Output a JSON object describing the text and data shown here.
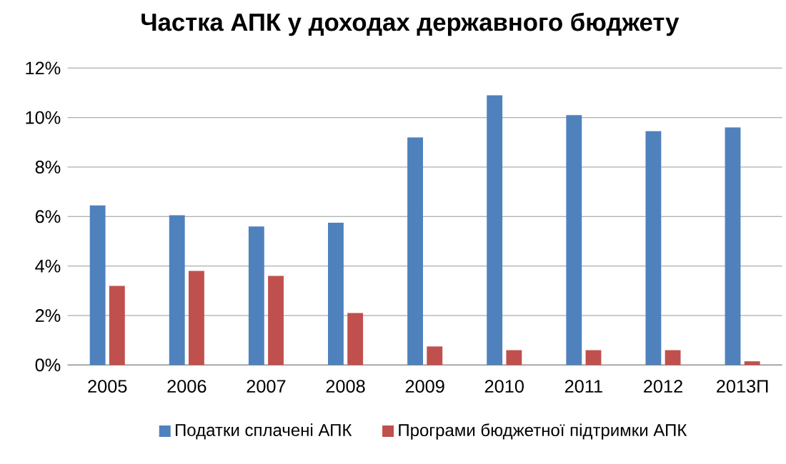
{
  "chart_data": {
    "type": "bar",
    "title": "Частка АПК у доходах державного бюджету",
    "categories": [
      "2005",
      "2006",
      "2007",
      "2008",
      "2009",
      "2010",
      "2011",
      "2012",
      "2013П"
    ],
    "series": [
      {
        "name": "Податки сплачені АПК",
        "color": "#4f81bd",
        "values": [
          6.45,
          6.05,
          5.6,
          5.75,
          9.2,
          10.9,
          10.1,
          9.45,
          9.6
        ]
      },
      {
        "name": "Програми бюджетної підтримки АПК",
        "color": "#c0504d",
        "values": [
          3.2,
          3.8,
          3.6,
          2.1,
          0.75,
          0.6,
          0.6,
          0.6,
          0.15
        ]
      }
    ],
    "ylim": [
      0,
      12
    ],
    "yticks": [
      {
        "value": 0,
        "label": "0%"
      },
      {
        "value": 2,
        "label": "2%"
      },
      {
        "value": 4,
        "label": "4%"
      },
      {
        "value": 6,
        "label": "6%"
      },
      {
        "value": 8,
        "label": "8%"
      },
      {
        "value": 10,
        "label": "10%"
      },
      {
        "value": 12,
        "label": "12%"
      }
    ],
    "grid": "y",
    "legend": "bottom"
  }
}
